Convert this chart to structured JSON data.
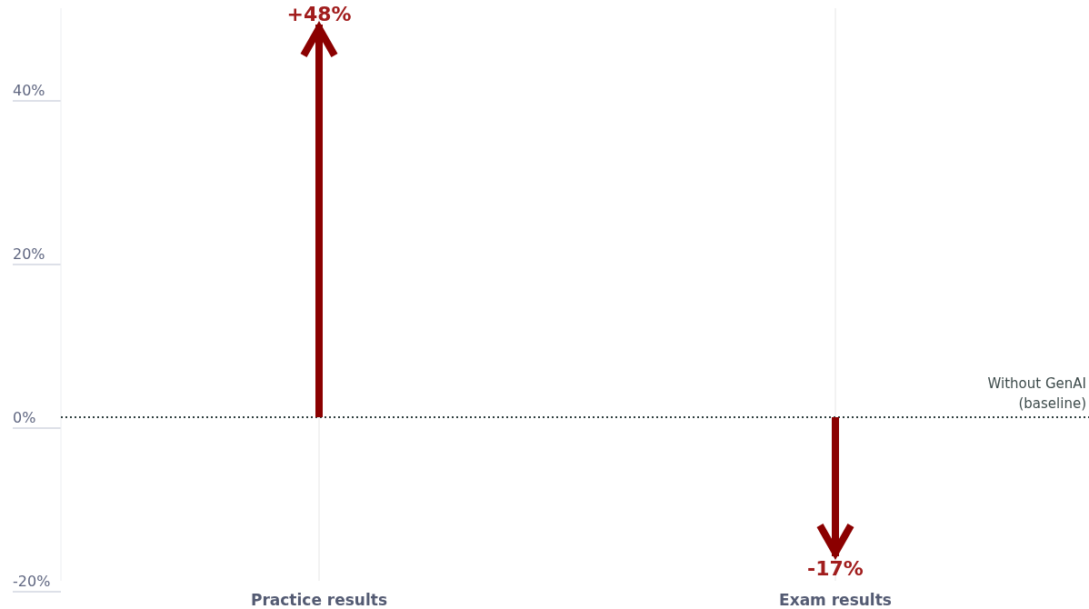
{
  "chart_data": {
    "type": "bar",
    "categories": [
      "Practice results",
      "Exam results"
    ],
    "series": [
      {
        "color": "#8b0000",
        "values": [
          48,
          -17
        ],
        "value_labels": [
          "+48%",
          "-17%"
        ]
      }
    ],
    "ylim": [
      -20,
      50
    ],
    "yticks": [
      {
        "value": -20,
        "label": "-20%"
      },
      {
        "value": 0,
        "label": "0%"
      },
      {
        "value": 20,
        "label": "20%"
      },
      {
        "value": 40,
        "label": "40%"
      }
    ],
    "grid": "x",
    "ref_lines": [
      {
        "axis": "y",
        "value": 0,
        "label": "Without GenAI (baseline)",
        "line_style": "dotted",
        "color": "#2f3f3f"
      }
    ]
  }
}
